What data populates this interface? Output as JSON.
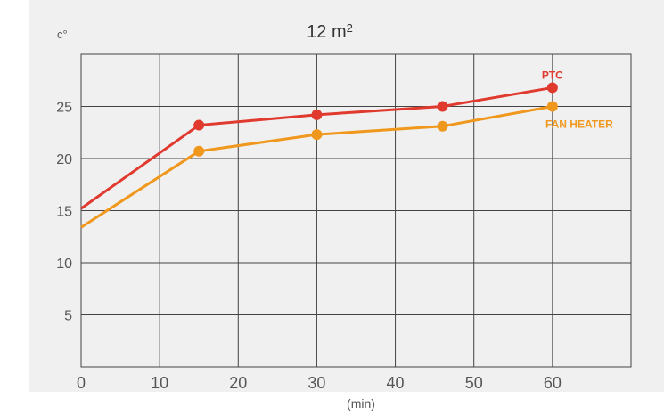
{
  "chart_data": {
    "type": "line",
    "title": "12 m²",
    "ylabel": "c°",
    "xlabel": "(min)",
    "x_ticks": [
      "0",
      "10",
      "20",
      "30",
      "40",
      "50",
      "60"
    ],
    "y_ticks": [
      "5",
      "10",
      "15",
      "20",
      "25"
    ],
    "xlim": [
      0,
      70
    ],
    "ylim": [
      0,
      30
    ],
    "grid": true,
    "series": [
      {
        "name": "PTC",
        "color": "#e03a2f",
        "x": [
          0,
          15,
          30,
          46,
          60
        ],
        "y": [
          15.2,
          23.2,
          24.2,
          25.0,
          26.8
        ]
      },
      {
        "name": "FAN HEATER",
        "color": "#f0981d",
        "x": [
          0,
          15,
          30,
          46,
          60
        ],
        "y": [
          13.4,
          20.7,
          22.3,
          23.1,
          25.0
        ]
      }
    ]
  }
}
